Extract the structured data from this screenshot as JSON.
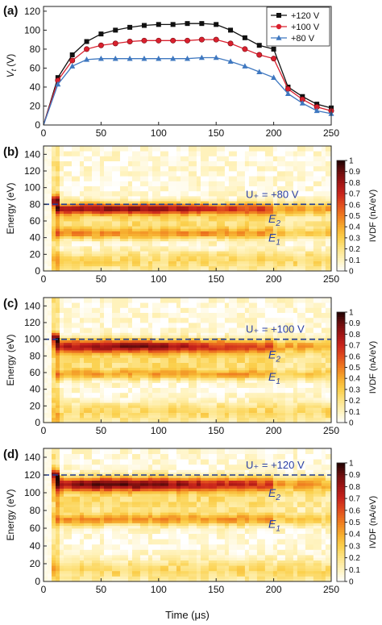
{
  "chart_data": [
    {
      "type": "line",
      "panel": "(a)",
      "ylabel": "V_t (V)",
      "ylabel_main": "V",
      "ylabel_sub": "t",
      "ylabel_unit": "(V)",
      "xlim": [
        0,
        250
      ],
      "ylim": [
        0,
        125
      ],
      "x_ticks": [
        "0",
        "50",
        "100",
        "150",
        "200",
        "250"
      ],
      "y_ticks": [
        "0",
        "20",
        "40",
        "60",
        "80",
        "100",
        "120"
      ],
      "legend_position": "top-right",
      "x": [
        0,
        12.5,
        25,
        37.5,
        50,
        62.5,
        75,
        87.5,
        100,
        112.5,
        125,
        137.5,
        150,
        162.5,
        175,
        187.5,
        200,
        212.5,
        225,
        237.5,
        250
      ],
      "series": [
        {
          "name": "+120 V",
          "color": "#111111",
          "marker": "square",
          "values": [
            0,
            50,
            74,
            88,
            96,
            100,
            103,
            105,
            106,
            106,
            107,
            107,
            106,
            100,
            92,
            84,
            80,
            40,
            30,
            22,
            18
          ]
        },
        {
          "name": "+100 V",
          "color": "#d9202e",
          "marker": "circle",
          "values": [
            0,
            47,
            68,
            80,
            84,
            86,
            88,
            89,
            89,
            89,
            89,
            90,
            90,
            86,
            80,
            74,
            70,
            38,
            27,
            19,
            15
          ]
        },
        {
          "name": "+80 V",
          "color": "#3f78c0",
          "marker": "triangle",
          "values": [
            0,
            43,
            62,
            69,
            70,
            70,
            70,
            70,
            70,
            70,
            70,
            71,
            71,
            67,
            62,
            56,
            50,
            33,
            23,
            15,
            12
          ]
        }
      ]
    },
    {
      "type": "heatmap",
      "panel": "(b)",
      "ylabel": "Energy (eV)",
      "xlabel": "Time (μs)",
      "xlim": [
        0,
        250
      ],
      "ylim": [
        0,
        150
      ],
      "x_ticks": [
        "0",
        "50",
        "100",
        "150",
        "200",
        "250"
      ],
      "y_ticks": [
        "0",
        "20",
        "40",
        "60",
        "80",
        "100",
        "120",
        "140"
      ],
      "colorbar_label": "IVDF (nA/eV)",
      "colorbar_ticks": [
        "0",
        "0.1",
        "0.2",
        "0.3",
        "0.4",
        "0.5",
        "0.6",
        "0.7",
        "0.8",
        "0.9",
        "1"
      ],
      "colorbar_range": [
        0,
        1
      ],
      "dashed_line_y": 80,
      "dashed_line_label": "U₊ = +80 V",
      "band_labels": [
        {
          "main": "E",
          "sub": "2",
          "energy": 63
        },
        {
          "main": "E",
          "sub": "1",
          "energy": 40
        }
      ],
      "bands": [
        {
          "energy": 75,
          "width": 7,
          "amplitude": 0.75
        },
        {
          "energy": 45,
          "width": 6,
          "amplitude": 0.3
        }
      ]
    },
    {
      "type": "heatmap",
      "panel": "(c)",
      "ylabel": "Energy (eV)",
      "xlabel": "Time (μs)",
      "xlim": [
        0,
        250
      ],
      "ylim": [
        0,
        150
      ],
      "x_ticks": [
        "0",
        "50",
        "100",
        "150",
        "200",
        "250"
      ],
      "y_ticks": [
        "0",
        "20",
        "40",
        "60",
        "80",
        "100",
        "120",
        "140"
      ],
      "colorbar_label": "IVDF (nA/eV)",
      "colorbar_ticks": [
        "0",
        "0.1",
        "0.2",
        "0.3",
        "0.4",
        "0.5",
        "0.6",
        "0.7",
        "0.8",
        "0.9",
        "1"
      ],
      "colorbar_range": [
        0,
        1
      ],
      "dashed_line_y": 100,
      "dashed_line_label": "U₊ = +100 V",
      "band_labels": [
        {
          "main": "E",
          "sub": "2",
          "energy": 82
        },
        {
          "main": "E",
          "sub": "1",
          "energy": 55
        }
      ],
      "bands": [
        {
          "energy": 92,
          "width": 8,
          "amplitude": 0.75
        },
        {
          "energy": 58,
          "width": 6,
          "amplitude": 0.3
        }
      ]
    },
    {
      "type": "heatmap",
      "panel": "(d)",
      "ylabel": "Energy (eV)",
      "xlabel": "Time (μs)",
      "xlim": [
        0,
        250
      ],
      "ylim": [
        0,
        150
      ],
      "x_ticks": [
        "0",
        "50",
        "100",
        "150",
        "200",
        "250"
      ],
      "y_ticks": [
        "0",
        "20",
        "40",
        "60",
        "80",
        "100",
        "120",
        "140"
      ],
      "colorbar_label": "IVDF (nA/eV)",
      "colorbar_ticks": [
        "0",
        "0.1",
        "0.2",
        "0.3",
        "0.4",
        "0.5",
        "0.6",
        "0.7",
        "0.8",
        "0.9",
        "1"
      ],
      "colorbar_range": [
        0,
        1
      ],
      "dashed_line_y": 120,
      "dashed_line_label": "U₊ = +120 V",
      "band_labels": [
        {
          "main": "E",
          "sub": "2",
          "energy": 100
        },
        {
          "main": "E",
          "sub": "1",
          "energy": 65
        }
      ],
      "bands": [
        {
          "energy": 110,
          "width": 8,
          "amplitude": 0.8
        },
        {
          "energy": 70,
          "width": 7,
          "amplitude": 0.35
        }
      ]
    }
  ],
  "colormap": [
    "#ffffff",
    "#fff3bf",
    "#fde58a",
    "#fbd04d",
    "#f6ad2e",
    "#ef7d20",
    "#e14e1e",
    "#c9251c",
    "#a11515",
    "#6d0e0e",
    "#200303"
  ],
  "dashed_line_color": "#1f3a93",
  "annotation_color": "#2a3fa5"
}
